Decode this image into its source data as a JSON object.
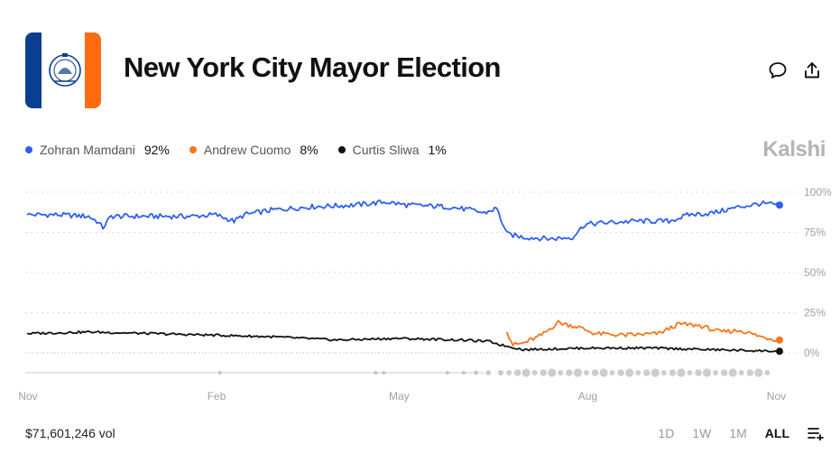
{
  "header": {
    "title": "New York City Mayor Election",
    "flag_colors": [
      "#0a3f8f",
      "#ffffff",
      "#ff6b0f"
    ],
    "icons": [
      "comment-icon",
      "share-icon"
    ]
  },
  "legend": [
    {
      "name": "Zohran Mamdani",
      "value": "92%",
      "color": "#2f5ef4"
    },
    {
      "name": "Andrew Cuomo",
      "value": "8%",
      "color": "#f5761a"
    },
    {
      "name": "Curtis Sliwa",
      "value": "1%",
      "color": "#111111"
    }
  ],
  "brand": "Kalshi",
  "footer": {
    "volume": "$71,601,246 vol",
    "ranges": [
      "1D",
      "1W",
      "1M",
      "ALL"
    ],
    "active_range": "ALL",
    "settings_icon": "list-plus-icon"
  },
  "chart_data": {
    "type": "line",
    "x_tick_labels": [
      "Nov",
      "Feb",
      "May",
      "Aug",
      "Nov"
    ],
    "y_tick_labels": [
      "100%",
      "75%",
      "50%",
      "25%",
      "0%"
    ],
    "ylim": [
      0,
      100
    ],
    "grid": true,
    "y_axis_side": "right",
    "x_range": [
      "2024-11-01",
      "2025-11-03"
    ],
    "series": [
      {
        "name": "Zohran Mamdani",
        "color": "#2f5ef4",
        "end_value": 92,
        "points": [
          [
            "2024-11-01",
            86
          ],
          [
            "2024-11-15",
            86
          ],
          [
            "2024-12-01",
            85
          ],
          [
            "2024-12-05",
            82
          ],
          [
            "2024-12-08",
            78
          ],
          [
            "2024-12-12",
            85
          ],
          [
            "2025-01-01",
            85
          ],
          [
            "2025-01-20",
            85
          ],
          [
            "2025-02-01",
            86
          ],
          [
            "2025-02-10",
            82
          ],
          [
            "2025-02-15",
            86
          ],
          [
            "2025-03-01",
            89
          ],
          [
            "2025-03-20",
            91
          ],
          [
            "2025-04-10",
            92
          ],
          [
            "2025-04-25",
            94
          ],
          [
            "2025-05-05",
            92
          ],
          [
            "2025-05-25",
            91
          ],
          [
            "2025-06-05",
            89
          ],
          [
            "2025-06-12",
            87
          ],
          [
            "2025-06-18",
            90
          ],
          [
            "2025-06-23",
            74
          ],
          [
            "2025-07-01",
            72
          ],
          [
            "2025-07-15",
            71
          ],
          [
            "2025-07-25",
            72
          ],
          [
            "2025-07-31",
            80
          ],
          [
            "2025-08-10",
            81
          ],
          [
            "2025-08-25",
            82
          ],
          [
            "2025-09-10",
            82
          ],
          [
            "2025-09-20",
            86
          ],
          [
            "2025-10-01",
            87
          ],
          [
            "2025-10-15",
            91
          ],
          [
            "2025-10-25",
            93
          ],
          [
            "2025-11-03",
            92
          ]
        ]
      },
      {
        "name": "Andrew Cuomo",
        "color": "#f5761a",
        "end_value": 8,
        "points": [
          [
            "2025-06-23",
            13
          ],
          [
            "2025-06-26",
            5
          ],
          [
            "2025-07-01",
            6
          ],
          [
            "2025-07-10",
            11
          ],
          [
            "2025-07-18",
            19
          ],
          [
            "2025-07-28",
            16
          ],
          [
            "2025-08-05",
            12
          ],
          [
            "2025-08-20",
            11
          ],
          [
            "2025-09-05",
            12
          ],
          [
            "2025-09-15",
            18
          ],
          [
            "2025-09-25",
            17
          ],
          [
            "2025-10-05",
            13
          ],
          [
            "2025-10-15",
            14
          ],
          [
            "2025-10-25",
            10
          ],
          [
            "2025-11-03",
            8
          ]
        ]
      },
      {
        "name": "Curtis Sliwa",
        "color": "#111111",
        "end_value": 1,
        "points": [
          [
            "2024-11-01",
            12
          ],
          [
            "2024-12-01",
            13
          ],
          [
            "2025-01-01",
            12
          ],
          [
            "2025-02-01",
            11
          ],
          [
            "2025-03-01",
            10
          ],
          [
            "2025-04-01",
            8
          ],
          [
            "2025-05-01",
            9
          ],
          [
            "2025-06-01",
            8
          ],
          [
            "2025-06-15",
            7
          ],
          [
            "2025-06-20",
            5
          ],
          [
            "2025-07-01",
            2
          ],
          [
            "2025-08-01",
            3
          ],
          [
            "2025-09-01",
            3
          ],
          [
            "2025-10-01",
            2
          ],
          [
            "2025-11-03",
            1
          ]
        ]
      }
    ]
  }
}
